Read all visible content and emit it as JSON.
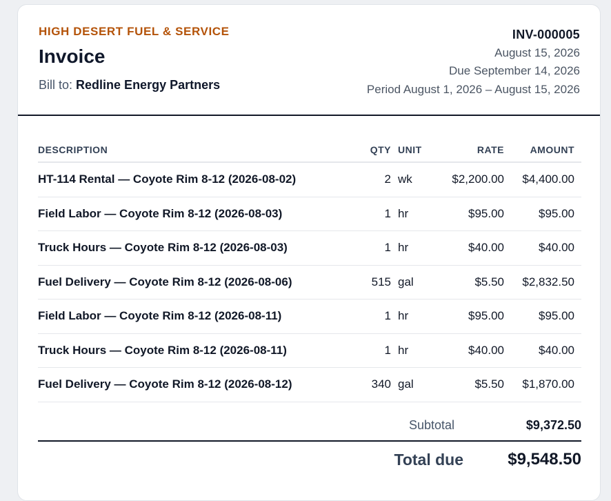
{
  "invoice": {
    "company": "HIGH DESERT FUEL & SERVICE",
    "title": "Invoice",
    "bill_to_label": "Bill to:",
    "bill_to_client": "Redline Energy Partners",
    "number": "INV-000005",
    "date": "August 15, 2026",
    "due": "Due September 14, 2026",
    "period": "Period August 1, 2026 – August 15, 2026"
  },
  "table": {
    "headers": {
      "description": "DESCRIPTION",
      "qty": "QTY",
      "unit": "UNIT",
      "rate": "RATE",
      "amount": "AMOUNT"
    },
    "rows": [
      {
        "description": "HT-114 Rental — Coyote Rim 8-12 (2026-08-02)",
        "qty": "2",
        "unit": "wk",
        "rate": "$2,200.00",
        "amount": "$4,400.00"
      },
      {
        "description": "Field Labor — Coyote Rim 8-12 (2026-08-03)",
        "qty": "1",
        "unit": "hr",
        "rate": "$95.00",
        "amount": "$95.00"
      },
      {
        "description": "Truck Hours — Coyote Rim 8-12 (2026-08-03)",
        "qty": "1",
        "unit": "hr",
        "rate": "$40.00",
        "amount": "$40.00"
      },
      {
        "description": "Fuel Delivery — Coyote Rim 8-12 (2026-08-06)",
        "qty": "515",
        "unit": "gal",
        "rate": "$5.50",
        "amount": "$2,832.50"
      },
      {
        "description": "Field Labor — Coyote Rim 8-12 (2026-08-11)",
        "qty": "1",
        "unit": "hr",
        "rate": "$95.00",
        "amount": "$95.00"
      },
      {
        "description": "Truck Hours — Coyote Rim 8-12 (2026-08-11)",
        "qty": "1",
        "unit": "hr",
        "rate": "$40.00",
        "amount": "$40.00"
      },
      {
        "description": "Fuel Delivery — Coyote Rim 8-12 (2026-08-12)",
        "qty": "340",
        "unit": "gal",
        "rate": "$5.50",
        "amount": "$1,870.00"
      }
    ]
  },
  "totals": {
    "subtotal_label": "Subtotal",
    "subtotal_value": "$9,372.50",
    "total_label": "Total due",
    "total_value": "$9,548.50"
  },
  "colors": {
    "accent": "#b45309",
    "text": "#111827",
    "muted": "#475569"
  }
}
